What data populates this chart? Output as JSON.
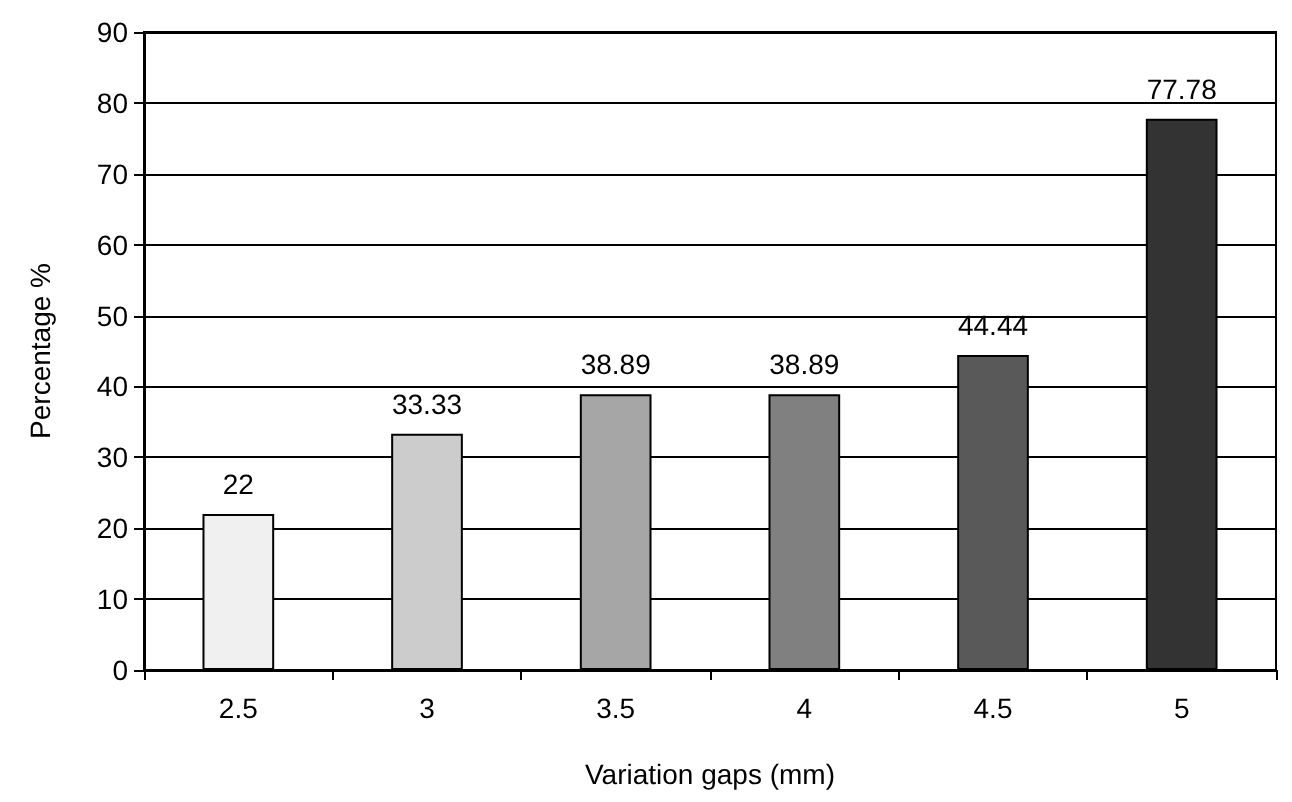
{
  "chart_data": {
    "type": "bar",
    "xlabel": "Variation gaps (mm)",
    "ylabel": "Percentage %",
    "categories": [
      "2.5",
      "3",
      "3.5",
      "4",
      "4.5",
      "5"
    ],
    "values": [
      22,
      33.33,
      38.89,
      38.89,
      44.44,
      77.78
    ],
    "colors": [
      "#f0f0f0",
      "#cccccc",
      "#a6a6a6",
      "#808080",
      "#595959",
      "#333333"
    ],
    "ylim": [
      0,
      90
    ],
    "yticks": [
      0,
      10,
      20,
      30,
      40,
      50,
      60,
      70,
      80,
      90
    ],
    "grid": "y",
    "data_labels": true
  }
}
